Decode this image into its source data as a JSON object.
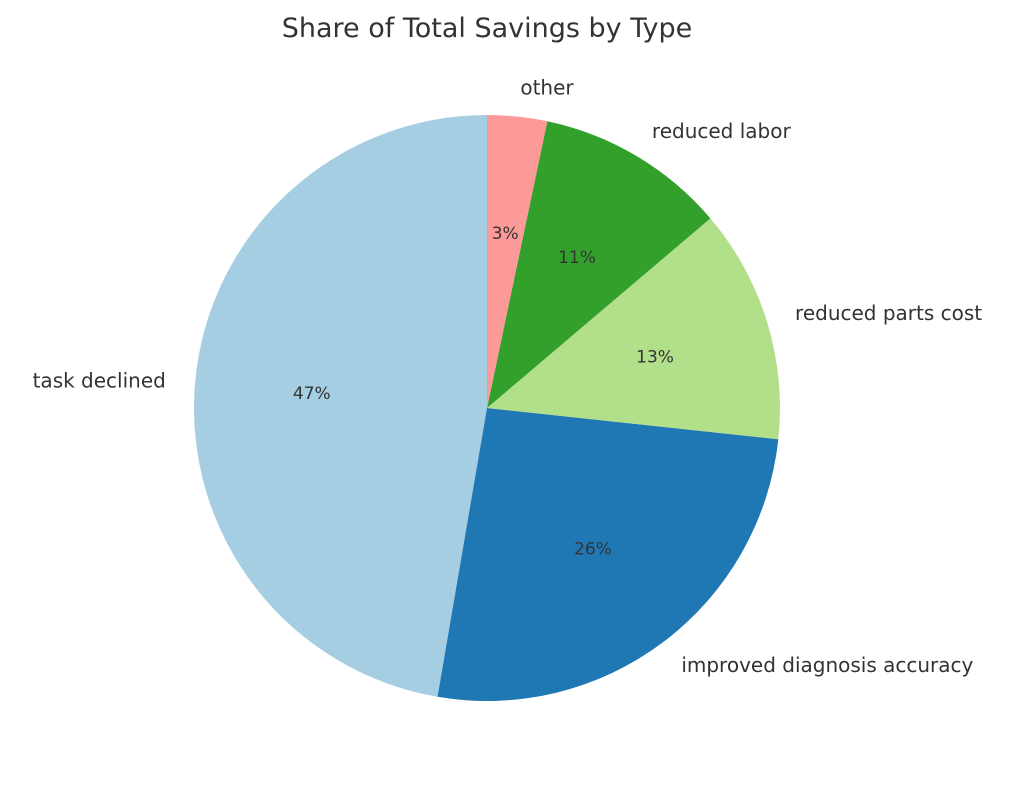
{
  "chart_data": {
    "type": "pie",
    "title": "Share of Total Savings by Type",
    "start_angle_deg": 90,
    "direction": "counterclockwise",
    "slices": [
      {
        "label": "task declined",
        "value": 47.3,
        "pct_label": "47%",
        "color": "#a6cee3"
      },
      {
        "label": "improved diagnosis accuracy",
        "value": 26.0,
        "pct_label": "26%",
        "color": "#1f78b4"
      },
      {
        "label": "reduced parts cost",
        "value": 12.9,
        "pct_label": "13%",
        "color": "#b2df8a"
      },
      {
        "label": "reduced labor",
        "value": 10.5,
        "pct_label": "11%",
        "color": "#33a02c"
      },
      {
        "label": "other",
        "value": 3.3,
        "pct_label": "3%",
        "color": "#fb9a99"
      }
    ]
  }
}
